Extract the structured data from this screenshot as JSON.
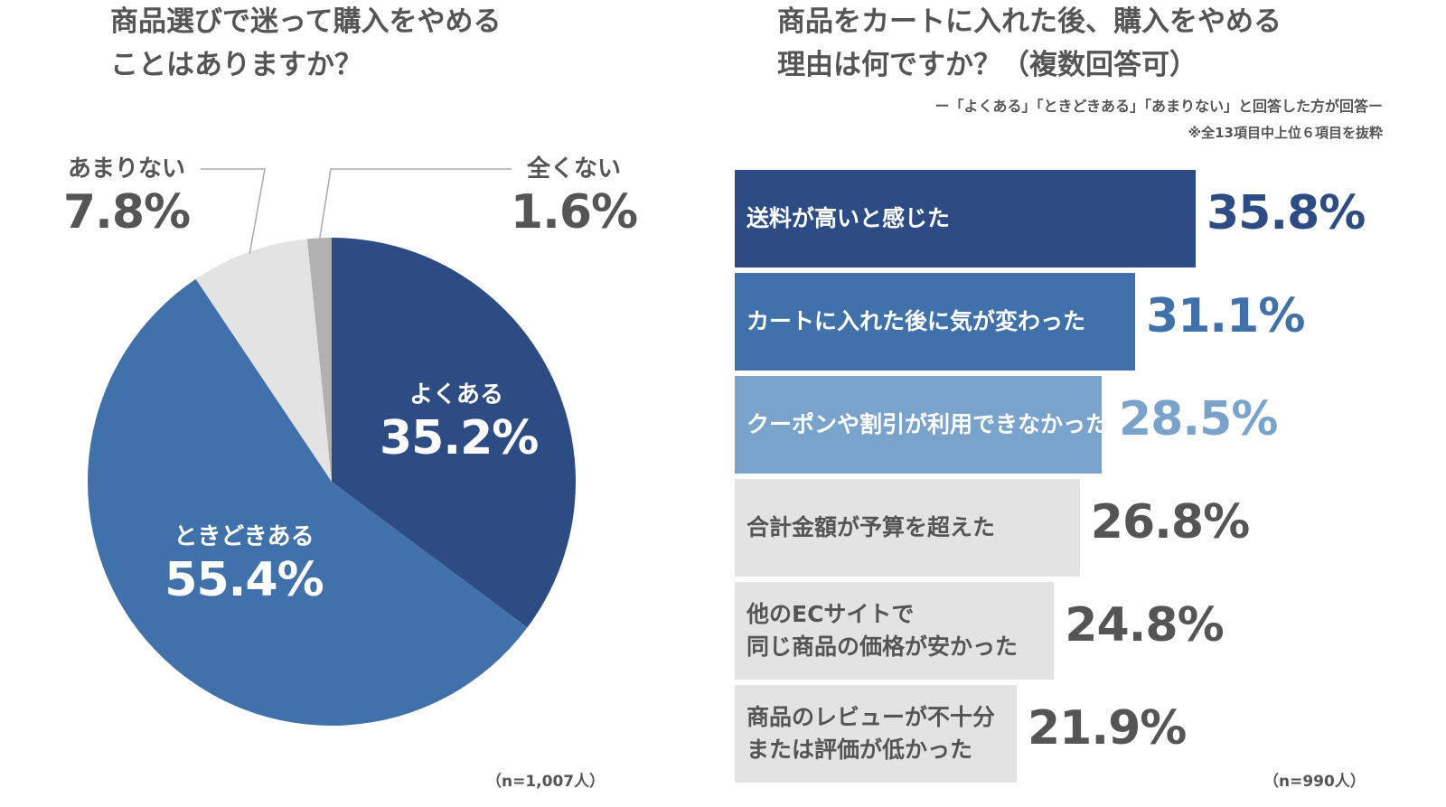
{
  "left": {
    "title_line1": "商品選びで迷って購入をやめる",
    "title_line2": "ことはありますか？",
    "n_label": "（n=1,007人）"
  },
  "right": {
    "title_line1": "商品をカートに入れた後、購入をやめる",
    "title_line2": "理由は何ですか？（複数回答可）",
    "subtitle": "ー「よくある」「ときどきある」「あまりない」と回答した方が回答ー",
    "note": "※全13項目中上位６項目を抜粋",
    "n_label": "（n=990人）"
  },
  "chart_data": [
    {
      "type": "pie",
      "title": "商品選びで迷って購入をやめることはありますか？",
      "slices": [
        {
          "label": "よくある",
          "value": 35.2,
          "value_label": "35.2%",
          "color": "#2d4c84"
        },
        {
          "label": "ときどきある",
          "value": 55.4,
          "value_label": "55.4%",
          "color": "#4171aa"
        },
        {
          "label": "あまりない",
          "value": 7.8,
          "value_label": "7.8%",
          "color": "#e3e3e3"
        },
        {
          "label": "全くない",
          "value": 1.6,
          "value_label": "1.6%",
          "color": "#b1b1b1"
        }
      ],
      "n": "n=1,007人"
    },
    {
      "type": "bar",
      "orientation": "horizontal",
      "title": "商品をカートに入れた後、購入をやめる理由は何ですか？（複数回答可）",
      "categories": [
        [
          "送料が高いと感じた"
        ],
        [
          "カートに入れた後に気が変わった"
        ],
        [
          "クーポンや割引が利用できなかった"
        ],
        [
          "合計金額が予算を超えた"
        ],
        [
          "他のECサイトで",
          "同じ商品の価格が安かった"
        ],
        [
          "商品のレビューが不十分",
          "または評価が低かった"
        ]
      ],
      "values": [
        35.8,
        31.1,
        28.5,
        26.8,
        24.8,
        21.9
      ],
      "value_labels": [
        "35.8%",
        "31.1%",
        "28.5%",
        "26.8%",
        "24.8%",
        "21.9%"
      ],
      "bar_colors": [
        "#2d4c84",
        "#4171aa",
        "#7aa3cb",
        "#e3e3e3",
        "#e3e3e3",
        "#e3e3e3"
      ],
      "label_colors": [
        "#ffffff",
        "#ffffff",
        "#ffffff",
        "#555555",
        "#555555",
        "#555555"
      ],
      "value_colors": [
        "#2d4c84",
        "#4171aa",
        "#7aa3cb",
        "#555555",
        "#555555",
        "#555555"
      ],
      "n": "n=990人"
    }
  ]
}
